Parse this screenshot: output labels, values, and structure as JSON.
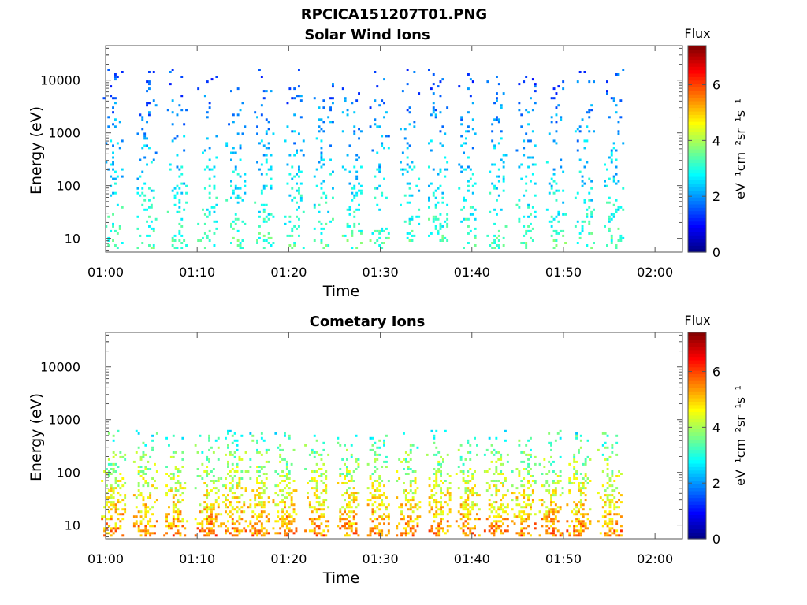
{
  "figure": {
    "title": "RPCICA151207T01.PNG"
  },
  "chart_data": [
    {
      "type": "heatmap",
      "title": "Solar Wind Ions",
      "xlabel": "Time",
      "ylabel": "Energy (eV)",
      "x_ticks": [
        "01:00",
        "01:10",
        "01:20",
        "01:30",
        "01:40",
        "01:50",
        "02:00"
      ],
      "x_range_min": [
        0,
        63
      ],
      "y_scale": "log",
      "y_ticks": [
        10,
        100,
        1000,
        10000
      ],
      "y_range_eV": [
        5.5,
        45000
      ],
      "colorbar": {
        "title": "Flux",
        "label": "eV⁻¹cm⁻²sr⁻¹s⁻¹",
        "ticks": [
          0,
          2,
          4,
          6
        ],
        "range": [
          0,
          7.4
        ],
        "colormap": "jet"
      },
      "pattern": {
        "burst_centers_min": [
          0.8,
          4.5,
          7.8,
          11.1,
          14.2,
          17.3,
          20.6,
          23.8,
          26.9,
          29.9,
          33.2,
          36.3,
          39.6,
          42.7,
          45.9,
          49.2,
          52.3,
          55.5
        ],
        "burst_halfwidth_min": 1.1,
        "burst_log_energy_range": [
          0.8,
          4.2
        ],
        "flux_low": 0.8,
        "flux_high": 3.4,
        "fill": 0.22
      }
    },
    {
      "type": "heatmap",
      "title": "Cometary Ions",
      "xlabel": "Time",
      "ylabel": "Energy (eV)",
      "x_ticks": [
        "01:00",
        "01:10",
        "01:20",
        "01:30",
        "01:40",
        "01:50",
        "02:00"
      ],
      "x_range_min": [
        0,
        63
      ],
      "y_scale": "log",
      "y_ticks": [
        10,
        100,
        1000,
        10000
      ],
      "y_range_eV": [
        5.5,
        45000
      ],
      "colorbar": {
        "title": "Flux",
        "label": "eV⁻¹cm⁻²sr⁻¹s⁻¹",
        "ticks": [
          0,
          2,
          4,
          6
        ],
        "range": [
          0,
          7.4
        ],
        "colormap": "jet"
      },
      "pattern": {
        "burst_centers_min": [
          0.8,
          4.3,
          7.6,
          11.0,
          13.8,
          16.5,
          19.5,
          23.0,
          26.3,
          29.6,
          33.0,
          36.3,
          39.5,
          42.6,
          45.6,
          48.6,
          51.6,
          55.0
        ],
        "burst_halfwidth_min": 1.3,
        "burst_log_energy_range": [
          0.78,
          2.8
        ],
        "flux_low": 2.2,
        "flux_high": 5.6,
        "fill": 0.55
      }
    }
  ]
}
